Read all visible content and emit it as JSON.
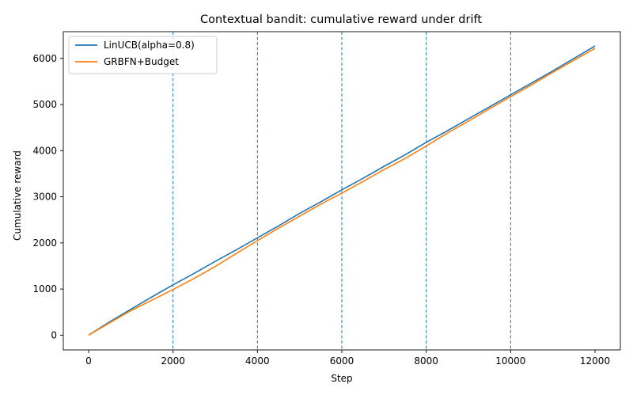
{
  "chart_data": {
    "type": "line",
    "title": "Contextual bandit: cumulative reward under drift",
    "xlabel": "Step",
    "ylabel": "Cumulative reward",
    "xlim": [
      -600,
      12600
    ],
    "ylim": [
      -320,
      6580
    ],
    "x_ticks": [
      0,
      2000,
      4000,
      6000,
      8000,
      10000,
      12000
    ],
    "y_ticks": [
      0,
      1000,
      2000,
      3000,
      4000,
      5000,
      6000
    ],
    "x_tick_labels": [
      "0",
      "2000",
      "4000",
      "6000",
      "8000",
      "10000",
      "12000"
    ],
    "y_tick_labels": [
      "0",
      "1000",
      "2000",
      "3000",
      "4000",
      "5000",
      "6000"
    ],
    "grid": false,
    "legend_position": "upper-left",
    "vlines": [
      2000,
      4000,
      6000,
      8000,
      10000
    ],
    "vline_color": "#1f77b4",
    "series": [
      {
        "name": "LinUCB(alpha=0.8)",
        "color": "#1f77b4",
        "x": [
          0,
          500,
          1000,
          1500,
          2000,
          2500,
          3000,
          3500,
          4000,
          4500,
          5000,
          5500,
          6000,
          6500,
          7000,
          7500,
          8000,
          8500,
          9000,
          9500,
          10000,
          10500,
          11000,
          11500,
          12000
        ],
        "values": [
          0,
          290,
          560,
          830,
          1090,
          1340,
          1600,
          1850,
          2110,
          2370,
          2640,
          2890,
          3150,
          3400,
          3660,
          3910,
          4180,
          4430,
          4690,
          4950,
          5210,
          5470,
          5730,
          6000,
          6270
        ]
      },
      {
        "name": "GRBFN+Budget",
        "color": "#ff7f0e",
        "x": [
          0,
          500,
          1000,
          1500,
          2000,
          2500,
          3000,
          3500,
          4000,
          4500,
          5000,
          5500,
          6000,
          6500,
          7000,
          7500,
          8000,
          8500,
          9000,
          9500,
          10000,
          10500,
          11000,
          11500,
          12000
        ],
        "values": [
          0,
          270,
          530,
          760,
          990,
          1230,
          1490,
          1770,
          2050,
          2320,
          2580,
          2840,
          3080,
          3330,
          3590,
          3830,
          4100,
          4380,
          4640,
          4910,
          5170,
          5430,
          5700,
          5960,
          6220
        ]
      }
    ]
  }
}
